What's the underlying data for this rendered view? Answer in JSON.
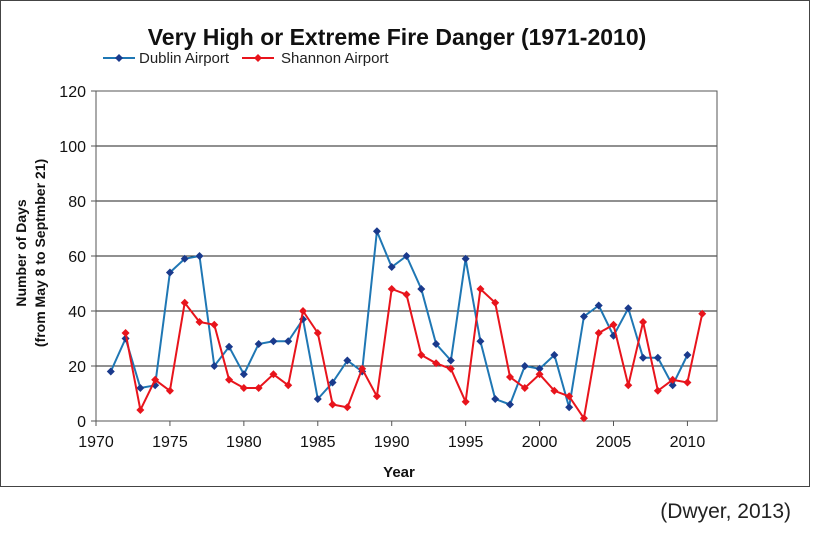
{
  "citation": "(Dwyer, 2013)",
  "chart_data": {
    "type": "line",
    "title": "Very High or Extreme Fire Danger (1971-2010)",
    "xlabel": "Year",
    "ylabel_line1": "Number of Days",
    "ylabel_line2": "(from May 8 to Septmber 21)",
    "xlim": [
      1970,
      2012
    ],
    "ylim": [
      0,
      120
    ],
    "xticks": [
      1970,
      1975,
      1980,
      1985,
      1990,
      1995,
      2000,
      2005,
      2010
    ],
    "yticks": [
      0,
      20,
      40,
      60,
      80,
      100,
      120
    ],
    "grid": "horizontal",
    "legend_position": "top-left",
    "series": [
      {
        "name": "Dublin Airport",
        "color": "#1f77b4",
        "marker_color": "#1a3a8c",
        "marker": "diamond",
        "points": [
          [
            1971,
            18
          ],
          [
            1972,
            30
          ],
          [
            1973,
            12
          ],
          [
            1974,
            13
          ],
          [
            1975,
            54
          ],
          [
            1976,
            59
          ],
          [
            1977,
            60
          ],
          [
            1978,
            20
          ],
          [
            1979,
            27
          ],
          [
            1980,
            17
          ],
          [
            1981,
            28
          ],
          [
            1982,
            29
          ],
          [
            1983,
            29
          ],
          [
            1984,
            37
          ],
          [
            1985,
            8
          ],
          [
            1986,
            14
          ],
          [
            1987,
            22
          ],
          [
            1988,
            18
          ],
          [
            1989,
            69
          ],
          [
            1990,
            56
          ],
          [
            1991,
            60
          ],
          [
            1992,
            48
          ],
          [
            1993,
            28
          ],
          [
            1994,
            22
          ],
          [
            1995,
            59
          ],
          [
            1996,
            29
          ],
          [
            1997,
            8
          ],
          [
            1998,
            6
          ],
          [
            1999,
            20
          ],
          [
            2000,
            19
          ],
          [
            2001,
            24
          ],
          [
            2002,
            5
          ],
          [
            2003,
            38
          ],
          [
            2004,
            42
          ],
          [
            2005,
            31
          ],
          [
            2006,
            41
          ],
          [
            2007,
            23
          ],
          [
            2008,
            23
          ],
          [
            2009,
            13
          ],
          [
            2010,
            24
          ]
        ]
      },
      {
        "name": "Shannon Airport",
        "color": "#e8141c",
        "marker_color": "#e8141c",
        "marker": "diamond",
        "points": [
          [
            1972,
            32
          ],
          [
            1973,
            4
          ],
          [
            1974,
            15
          ],
          [
            1975,
            11
          ],
          [
            1976,
            43
          ],
          [
            1977,
            36
          ],
          [
            1978,
            35
          ],
          [
            1979,
            15
          ],
          [
            1980,
            12
          ],
          [
            1981,
            12
          ],
          [
            1982,
            17
          ],
          [
            1983,
            13
          ],
          [
            1984,
            40
          ],
          [
            1985,
            32
          ],
          [
            1986,
            6
          ],
          [
            1987,
            5
          ],
          [
            1988,
            19
          ],
          [
            1989,
            9
          ],
          [
            1990,
            48
          ],
          [
            1991,
            46
          ],
          [
            1992,
            24
          ],
          [
            1993,
            21
          ],
          [
            1994,
            19
          ],
          [
            1995,
            7
          ],
          [
            1996,
            48
          ],
          [
            1997,
            43
          ],
          [
            1998,
            16
          ],
          [
            1999,
            12
          ],
          [
            2000,
            17
          ],
          [
            2001,
            11
          ],
          [
            2002,
            9
          ],
          [
            2003,
            1
          ],
          [
            2004,
            32
          ],
          [
            2005,
            35
          ],
          [
            2006,
            13
          ],
          [
            2007,
            36
          ],
          [
            2008,
            11
          ],
          [
            2009,
            15
          ],
          [
            2010,
            14
          ],
          [
            2011,
            39
          ]
        ]
      }
    ]
  }
}
